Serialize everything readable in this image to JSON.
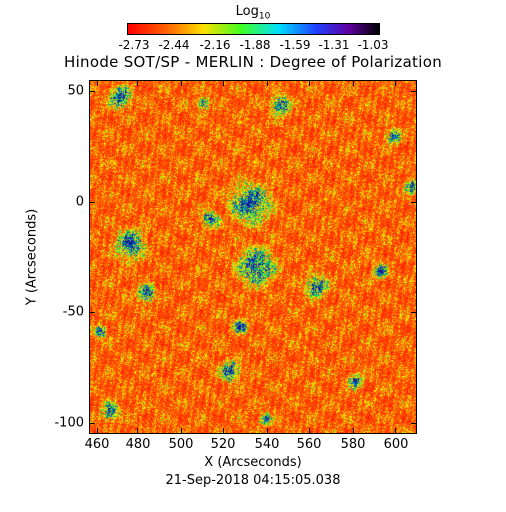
{
  "colorbar": {
    "label": "Log",
    "label_sub": "10",
    "ticks": [
      "-2.73",
      "-2.44",
      "-2.16",
      "-1.88",
      "-1.59",
      "-1.31",
      "-1.03"
    ]
  },
  "title": "Hinode SOT/SP - MERLIN : Degree of Polarization",
  "axes": {
    "xlabel": "X (Arcseconds)",
    "ylabel": "Y (Arcseconds)",
    "xticks": [
      "460",
      "480",
      "500",
      "520",
      "540",
      "560",
      "580",
      "600"
    ],
    "yticks": [
      "50",
      "0",
      "-50",
      "-100"
    ]
  },
  "timestamp": "21-Sep-2018 04:15:05.038",
  "colors": {
    "low": "#ff3a00",
    "mid": "#ffe000",
    "high": "#00ff80",
    "peak": "#1020b0"
  }
}
